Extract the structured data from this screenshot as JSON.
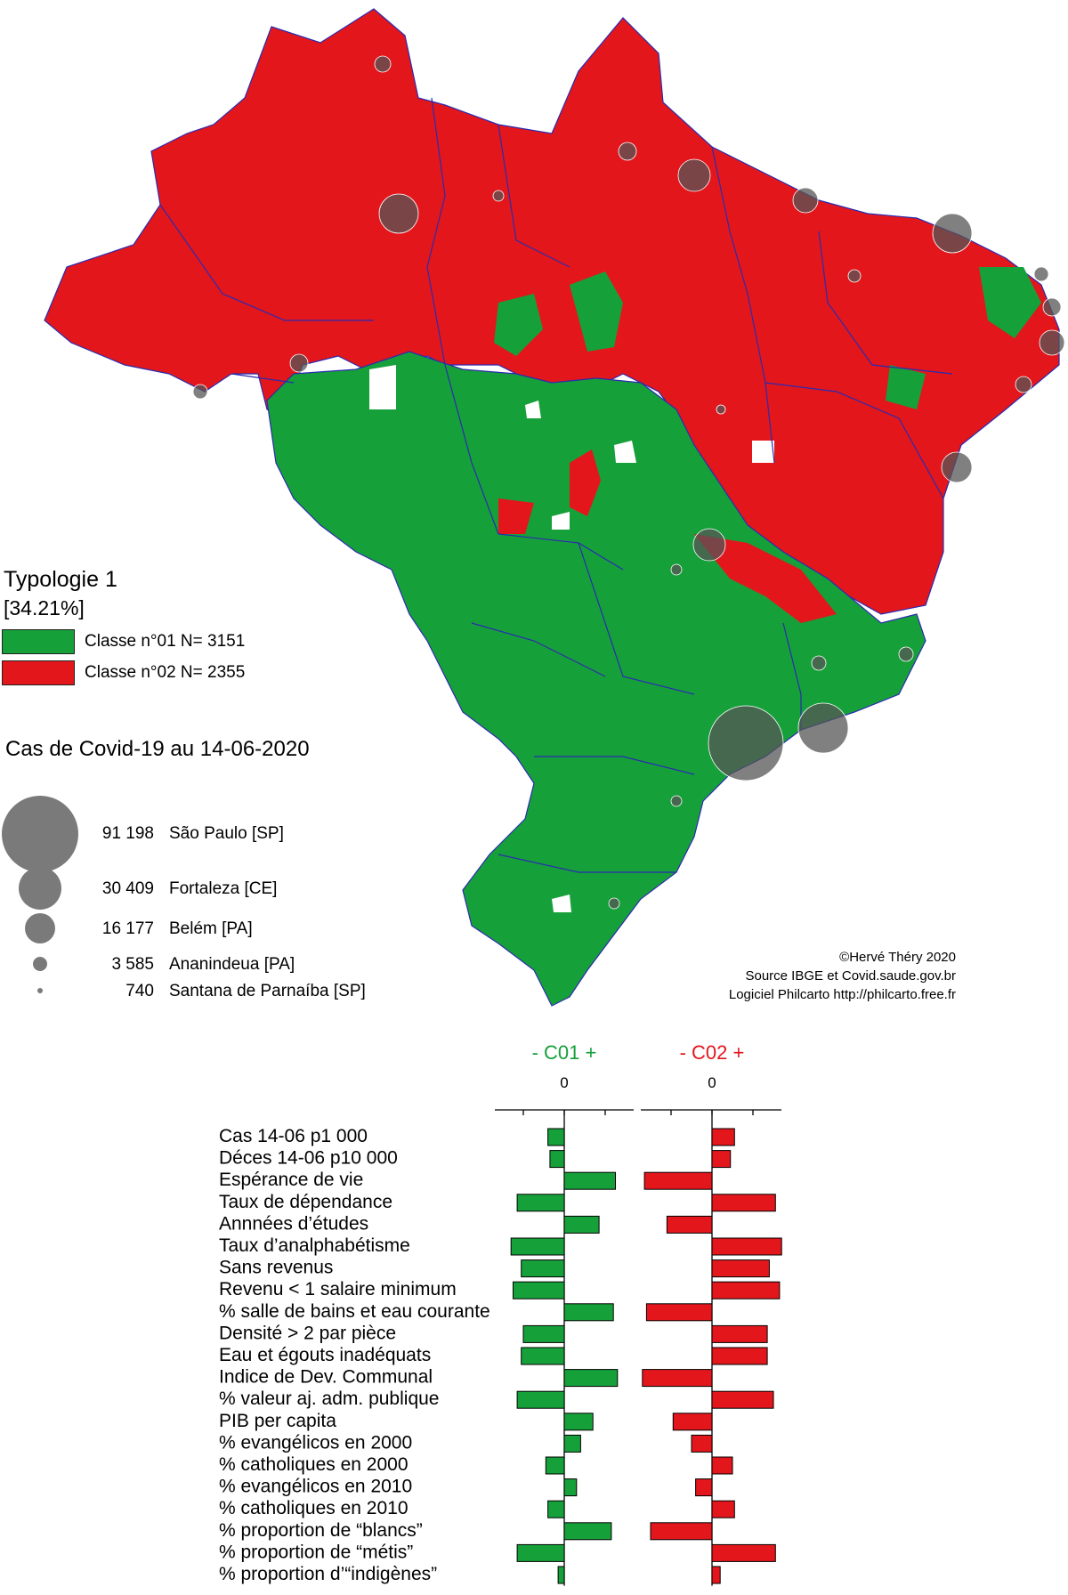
{
  "legend": {
    "title": "Typologie 1",
    "subtitle": "[34.21%]",
    "classes": [
      {
        "label": "Classe n°01 N= 3151",
        "color": "#16a03a"
      },
      {
        "label": "Classe n°02 N= 2355",
        "color": "#e3161c"
      }
    ]
  },
  "cases_legend": {
    "title": "Cas de Covid-19 au 14-06-2020",
    "items": [
      {
        "value": "91 198",
        "city": "São Paulo [SP]"
      },
      {
        "value": "30 409",
        "city": "Fortaleza [CE]"
      },
      {
        "value": "16 177",
        "city": "Belém [PA]"
      },
      {
        "value": "3 585",
        "city": "Ananindeua [PA]"
      },
      {
        "value": "740",
        "city": "Santana de Parnaíba [SP]"
      }
    ],
    "circle_color": "#6e6e6e"
  },
  "credits": {
    "line1": "©Hervé Théry 2020",
    "line2": "Source IBGE et Covid.saude.gov.br",
    "line3": "Logiciel Philcarto http://philcarto.free.fr"
  },
  "colors": {
    "green": "#16a03a",
    "red": "#e3161c",
    "border": "#2b2bb0"
  },
  "chart_data": {
    "type": "bar",
    "orientation": "horizontal",
    "categories": [
      "Cas 14-06 p1 000",
      "Déces 14-06 p10  000",
      "Espérance de vie",
      "Taux de dépendance",
      "Annnées d’études",
      "Taux d’analphabétisme",
      "Sans revenus",
      "Revenu < 1 salaire minimum",
      "% salle de bains et eau courante",
      "Densité > 2 par pièce",
      "Eau et égouts inadéquats",
      "Indice de Dev. Communal",
      "% valeur aj. adm. publique",
      "PIB per capita",
      "%  evangélicos en 2000",
      "% catholiques en 2000",
      "%  evangélicos en 2010",
      "% catholiques en 2010",
      "% proportion de “blancs”",
      "% proportion de “métis”",
      "% proportion d’“indigènes”"
    ],
    "series": [
      {
        "name": "- C01 +",
        "zero_label": "0",
        "color": "#16a03a",
        "values": [
          -0.4,
          -0.35,
          1.25,
          -1.15,
          0.85,
          -1.3,
          -1.05,
          -1.25,
          1.2,
          -1.0,
          -1.05,
          1.3,
          -1.15,
          0.7,
          0.4,
          -0.45,
          0.3,
          -0.4,
          1.15,
          -1.15,
          -0.15
        ]
      },
      {
        "name": "- C02 +",
        "zero_label": "0",
        "color": "#e3161c",
        "values": [
          0.55,
          0.45,
          -1.65,
          1.55,
          -1.1,
          1.7,
          1.4,
          1.65,
          -1.6,
          1.35,
          1.35,
          -1.7,
          1.5,
          -0.95,
          -0.5,
          0.5,
          -0.4,
          0.55,
          -1.5,
          1.55,
          0.2
        ]
      }
    ],
    "ticks": [
      -1,
      0,
      1
    ]
  }
}
